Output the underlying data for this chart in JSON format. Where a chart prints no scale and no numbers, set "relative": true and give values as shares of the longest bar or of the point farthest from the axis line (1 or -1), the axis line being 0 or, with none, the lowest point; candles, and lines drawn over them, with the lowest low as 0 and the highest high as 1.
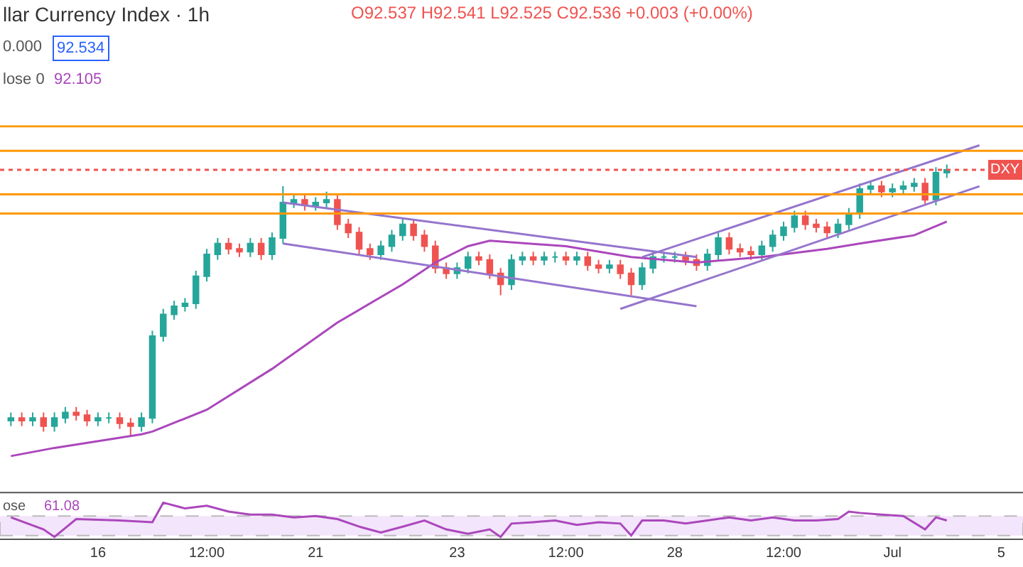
{
  "chart_data": [
    {
      "type": "candlestick",
      "title": "llar Currency Index · 1h",
      "relative": true,
      "grid": false,
      "annotations": [
        "O92.537 H92.541 L92.525 C92.536 +0.003 (+0.00%)",
        "0.000",
        "92.534",
        "lose 0",
        "92.105"
      ],
      "categories": [
        null,
        null,
        null,
        null,
        null,
        null,
        null,
        null,
        null,
        null,
        null,
        null,
        null,
        null,
        null,
        null,
        null,
        null,
        null,
        null,
        null,
        null,
        null,
        null,
        null,
        null,
        null,
        null,
        null,
        null,
        null,
        null,
        null,
        null,
        null,
        null,
        null,
        null,
        null,
        null,
        null,
        null,
        null,
        null,
        null,
        null,
        null,
        null,
        null,
        null,
        null,
        null,
        null,
        null,
        null,
        null,
        null,
        null,
        null,
        null,
        null,
        null,
        null,
        null,
        null,
        null,
        null,
        null,
        null,
        null,
        null,
        null,
        null,
        null,
        null,
        null,
        null,
        null,
        null,
        null,
        null,
        null,
        null,
        null,
        null,
        null,
        null,
        null,
        null,
        null,
        null,
        null
      ],
      "ohlc": [
        [
          0.06,
          0.09,
          0.04,
          0.07
        ],
        [
          0.07,
          0.09,
          0.04,
          0.06
        ],
        [
          0.06,
          0.09,
          0.04,
          0.07
        ],
        [
          0.07,
          0.09,
          0.02,
          0.04
        ],
        [
          0.04,
          0.09,
          0.02,
          0.07
        ],
        [
          0.07,
          0.11,
          0.05,
          0.09
        ],
        [
          0.09,
          0.11,
          0.06,
          0.08
        ],
        [
          0.08,
          0.1,
          0.04,
          0.06
        ],
        [
          0.06,
          0.09,
          0.04,
          0.07
        ],
        [
          0.07,
          0.09,
          0.05,
          0.07
        ],
        [
          0.07,
          0.09,
          0.03,
          0.05
        ],
        [
          0.05,
          0.07,
          0,
          0.04
        ],
        [
          0.04,
          0.09,
          0.02,
          0.07
        ],
        [
          0.07,
          0.39,
          0.05,
          0.37
        ],
        [
          0.37,
          0.47,
          0.35,
          0.45
        ],
        [
          0.45,
          0.5,
          0.43,
          0.48
        ],
        [
          0.48,
          0.51,
          0.46,
          0.49
        ],
        [
          0.49,
          0.61,
          0.47,
          0.59
        ],
        [
          0.59,
          0.69,
          0.57,
          0.67
        ],
        [
          0.67,
          0.73,
          0.65,
          0.71
        ],
        [
          0.71,
          0.73,
          0.67,
          0.69
        ],
        [
          0.69,
          0.71,
          0.66,
          0.68
        ],
        [
          0.68,
          0.73,
          0.66,
          0.71
        ],
        [
          0.71,
          0.73,
          0.65,
          0.67
        ],
        [
          0.67,
          0.75,
          0.65,
          0.73
        ],
        [
          0.73,
          0.92,
          0.71,
          0.86
        ],
        [
          0.86,
          0.89,
          0.84,
          0.87
        ],
        [
          0.87,
          0.89,
          0.83,
          0.85
        ],
        [
          0.85,
          0.88,
          0.83,
          0.86
        ],
        [
          0.86,
          0.9,
          0.84,
          0.87
        ],
        [
          0.87,
          0.89,
          0.76,
          0.78
        ],
        [
          0.78,
          0.8,
          0.73,
          0.75
        ],
        [
          0.75,
          0.77,
          0.67,
          0.69
        ],
        [
          0.69,
          0.71,
          0.65,
          0.67
        ],
        [
          0.67,
          0.72,
          0.65,
          0.7
        ],
        [
          0.7,
          0.76,
          0.68,
          0.74
        ],
        [
          0.74,
          0.8,
          0.72,
          0.78
        ],
        [
          0.78,
          0.8,
          0.72,
          0.74
        ],
        [
          0.74,
          0.76,
          0.68,
          0.7
        ],
        [
          0.7,
          0.72,
          0.6,
          0.62
        ],
        [
          0.62,
          0.64,
          0.58,
          0.6
        ],
        [
          0.6,
          0.64,
          0.58,
          0.62
        ],
        [
          0.62,
          0.68,
          0.6,
          0.66
        ],
        [
          0.66,
          0.68,
          0.63,
          0.65
        ],
        [
          0.65,
          0.67,
          0.58,
          0.6
        ],
        [
          0.6,
          0.62,
          0.52,
          0.56
        ],
        [
          0.56,
          0.67,
          0.54,
          0.65
        ],
        [
          0.65,
          0.68,
          0.63,
          0.66
        ],
        [
          0.66,
          0.68,
          0.63,
          0.65
        ],
        [
          0.65,
          0.68,
          0.63,
          0.66
        ],
        [
          0.66,
          0.68,
          0.64,
          0.66
        ],
        [
          0.66,
          0.68,
          0.63,
          0.65
        ],
        [
          0.65,
          0.68,
          0.63,
          0.66
        ],
        [
          0.66,
          0.68,
          0.61,
          0.63
        ],
        [
          0.63,
          0.65,
          0.6,
          0.62
        ],
        [
          0.62,
          0.65,
          0.6,
          0.63
        ],
        [
          0.63,
          0.65,
          0.58,
          0.6
        ],
        [
          0.6,
          0.62,
          0.52,
          0.56
        ],
        [
          0.56,
          0.64,
          0.54,
          0.62
        ],
        [
          0.62,
          0.68,
          0.6,
          0.66
        ],
        [
          0.66,
          0.68,
          0.64,
          0.66
        ],
        [
          0.66,
          0.68,
          0.64,
          0.66
        ],
        [
          0.66,
          0.68,
          0.63,
          0.65
        ],
        [
          0.65,
          0.67,
          0.61,
          0.63
        ],
        [
          0.63,
          0.69,
          0.61,
          0.67
        ],
        [
          0.67,
          0.75,
          0.65,
          0.73
        ],
        [
          0.73,
          0.75,
          0.67,
          0.69
        ],
        [
          0.69,
          0.71,
          0.66,
          0.68
        ],
        [
          0.68,
          0.7,
          0.65,
          0.67
        ],
        [
          0.67,
          0.72,
          0.65,
          0.7
        ],
        [
          0.7,
          0.76,
          0.68,
          0.74
        ],
        [
          0.74,
          0.79,
          0.72,
          0.77
        ],
        [
          0.77,
          0.83,
          0.75,
          0.81
        ],
        [
          0.81,
          0.83,
          0.76,
          0.78
        ],
        [
          0.78,
          0.8,
          0.75,
          0.77
        ],
        [
          0.77,
          0.79,
          0.73,
          0.75
        ],
        [
          0.75,
          0.8,
          0.73,
          0.78
        ],
        [
          0.78,
          0.84,
          0.76,
          0.82
        ],
        [
          0.82,
          0.93,
          0.8,
          0.91
        ],
        [
          0.91,
          0.94,
          0.89,
          0.92
        ],
        [
          0.92,
          0.94,
          0.88,
          0.9
        ],
        [
          0.9,
          0.93,
          0.88,
          0.91
        ],
        [
          0.91,
          0.94,
          0.89,
          0.92
        ],
        [
          0.92,
          0.95,
          0.9,
          0.93
        ],
        [
          0.93,
          0.95,
          0.85,
          0.87
        ],
        [
          0.87,
          0.99,
          0.85,
          0.97
        ],
        [
          0.97,
          1,
          0.95,
          0.98
        ],
        null,
        null,
        null,
        null,
        null
      ],
      "series": [
        {
          "type": "line",
          "color": "#ab47bc",
          "values": [
            -0.07,
            null,
            null,
            null,
            -0.04,
            null,
            null,
            null,
            null,
            null,
            null,
            null,
            0.01,
            0.02,
            null,
            null,
            null,
            null,
            0.1,
            null,
            null,
            null,
            null,
            null,
            0.25,
            null,
            null,
            null,
            null,
            null,
            0.42,
            null,
            null,
            null,
            null,
            null,
            0.56,
            null,
            null,
            0.64,
            null,
            null,
            0.7,
            null,
            0.72,
            null,
            null,
            null,
            null,
            null,
            null,
            0.7,
            null,
            null,
            null,
            null,
            null,
            0.66,
            null,
            null,
            null,
            null,
            null,
            0.64,
            null,
            null,
            null,
            null,
            null,
            0.66,
            null,
            null,
            null,
            null,
            null,
            0.69,
            null,
            null,
            0.71,
            null,
            null,
            null,
            null,
            0.74,
            null,
            null,
            0.79,
            null,
            null,
            null,
            null,
            null
          ]
        },
        {
          "type": "line",
          "color": "#9575cd",
          "values": [
            null,
            null,
            null,
            null,
            null,
            null,
            null,
            null,
            null,
            null,
            null,
            null,
            null,
            null,
            null,
            null,
            null,
            null,
            null,
            null,
            null,
            null,
            null,
            null,
            null,
            0.86,
            null,
            null,
            null,
            null,
            null,
            null,
            null,
            null,
            null,
            null,
            null,
            null,
            null,
            null,
            null,
            null,
            null,
            null,
            null,
            null,
            null,
            null,
            null,
            null,
            null,
            null,
            null,
            null,
            null,
            null,
            null,
            null,
            null,
            null,
            null,
            null,
            null,
            0.66,
            null,
            null,
            null,
            null,
            null,
            null,
            null,
            null,
            null,
            null,
            null,
            null,
            null,
            null,
            null,
            null,
            null,
            null,
            null,
            null,
            null,
            null,
            null,
            null,
            null,
            null,
            null,
            null
          ]
        },
        {
          "type": "line",
          "color": "#9575cd",
          "values": [
            null,
            null,
            null,
            null,
            null,
            null,
            null,
            null,
            null,
            null,
            null,
            null,
            null,
            null,
            null,
            null,
            null,
            null,
            null,
            null,
            null,
            null,
            null,
            null,
            null,
            0.71,
            null,
            null,
            null,
            null,
            null,
            null,
            null,
            null,
            null,
            null,
            null,
            null,
            null,
            null,
            null,
            null,
            null,
            null,
            null,
            null,
            null,
            null,
            null,
            null,
            null,
            null,
            null,
            null,
            null,
            null,
            null,
            null,
            null,
            null,
            null,
            null,
            null,
            0.48,
            null,
            null,
            null,
            null,
            null,
            null,
            null,
            null,
            null,
            null,
            null,
            null,
            null,
            null,
            null,
            null,
            null,
            null,
            null,
            null,
            null,
            null,
            null,
            null,
            null,
            null,
            null,
            null
          ]
        },
        {
          "type": "line",
          "color": "#9575cd",
          "values": [
            null,
            null,
            null,
            null,
            null,
            null,
            null,
            null,
            null,
            null,
            null,
            null,
            null,
            null,
            null,
            null,
            null,
            null,
            null,
            null,
            null,
            null,
            null,
            null,
            null,
            null,
            null,
            null,
            null,
            null,
            null,
            null,
            null,
            null,
            null,
            null,
            null,
            null,
            null,
            null,
            null,
            null,
            null,
            null,
            null,
            null,
            null,
            null,
            null,
            null,
            null,
            null,
            null,
            null,
            null,
            null,
            null,
            null,
            0.66,
            null,
            null,
            null,
            null,
            null,
            null,
            null,
            null,
            null,
            null,
            null,
            null,
            null,
            null,
            null,
            null,
            null,
            null,
            null,
            null,
            null,
            null,
            null,
            null,
            null,
            null,
            null,
            null,
            null,
            null,
            1.07,
            null,
            null
          ]
        },
        {
          "type": "line",
          "color": "#9575cd",
          "values": [
            null,
            null,
            null,
            null,
            null,
            null,
            null,
            null,
            null,
            null,
            null,
            null,
            null,
            null,
            null,
            null,
            null,
            null,
            null,
            null,
            null,
            null,
            null,
            null,
            null,
            null,
            null,
            null,
            null,
            null,
            null,
            null,
            null,
            null,
            null,
            null,
            null,
            null,
            null,
            null,
            null,
            null,
            null,
            null,
            null,
            null,
            null,
            null,
            null,
            null,
            null,
            null,
            null,
            null,
            null,
            null,
            0.47,
            null,
            null,
            null,
            null,
            null,
            null,
            null,
            null,
            null,
            null,
            null,
            null,
            null,
            null,
            null,
            null,
            null,
            null,
            null,
            null,
            null,
            null,
            null,
            null,
            null,
            null,
            null,
            null,
            null,
            null,
            null,
            null,
            0.92,
            null,
            null
          ]
        }
      ],
      "ref_lines": [
        {
          "axis": "y",
          "value": 1.14,
          "color": "#ff9800",
          "line_style": "solid"
        },
        {
          "axis": "y",
          "value": 1.05,
          "color": "#ff9800",
          "line_style": "solid"
        },
        {
          "axis": "y",
          "value": 0.89,
          "color": "#ff9800",
          "line_style": "solid"
        },
        {
          "axis": "y",
          "value": 0.82,
          "color": "#ff9800",
          "line_style": "solid"
        },
        {
          "axis": "y",
          "value": 0.98,
          "color": "#ef5350",
          "line_style": "dotted",
          "label": "DXY"
        }
      ]
    },
    {
      "type": "line",
      "relative": true,
      "grid": false,
      "marker": "none",
      "annotations": [
        "ose",
        "61.08"
      ],
      "categories": [
        null,
        null,
        null,
        null,
        null,
        null,
        null,
        null,
        "16",
        null,
        null,
        null,
        null,
        null,
        null,
        null,
        null,
        null,
        "12:00",
        null,
        null,
        null,
        null,
        null,
        null,
        null,
        null,
        null,
        "21",
        null,
        null,
        null,
        null,
        null,
        null,
        null,
        null,
        null,
        null,
        null,
        null,
        "23",
        null,
        null,
        null,
        null,
        null,
        null,
        null,
        null,
        null,
        "12:00",
        null,
        null,
        null,
        null,
        null,
        null,
        null,
        null,
        null,
        "28",
        null,
        null,
        null,
        null,
        null,
        null,
        null,
        null,
        null,
        "12:00",
        null,
        null,
        null,
        null,
        null,
        null,
        null,
        null,
        null,
        "Jul",
        null,
        null,
        null,
        null,
        null,
        null,
        null,
        null,
        null,
        "5"
      ],
      "series": [
        {
          "color": "#ab47bc",
          "values": [
            0.57,
            null,
            null,
            0.22,
            0,
            null,
            0.52,
            null,
            null,
            null,
            0.48,
            null,
            null,
            0.43,
            1,
            null,
            0.83,
            null,
            0.91,
            null,
            0.74,
            null,
            0.65,
            null,
            0.65,
            null,
            0.57,
            null,
            0.61,
            null,
            0.52,
            null,
            0.3,
            null,
            0.13,
            null,
            0.3,
            null,
            0.48,
            null,
            0.22,
            null,
            0.09,
            null,
            0.22,
            0,
            0.39,
            null,
            0.43,
            null,
            0.48,
            null,
            0.35,
            null,
            0.43,
            null,
            0.39,
            0.04,
            0.48,
            null,
            0.48,
            null,
            0.39,
            null,
            0.48,
            null,
            0.57,
            null,
            0.48,
            null,
            0.57,
            null,
            0.48,
            null,
            0.48,
            null,
            0.52,
            0.74,
            0.7,
            null,
            0.65,
            null,
            0.61,
            null,
            0.22,
            0.57,
            0.48,
            null,
            null,
            null,
            null,
            null
          ]
        }
      ],
      "bands": [
        {
          "axis": "y",
          "from": 0.04,
          "to": 0.61,
          "color": "#f3e5fb"
        }
      ]
    }
  ]
}
